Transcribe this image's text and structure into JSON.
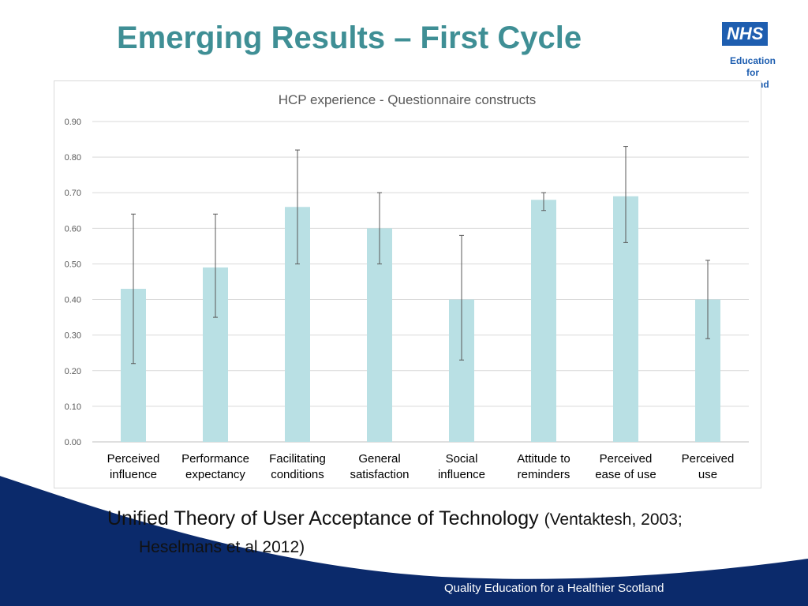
{
  "slide": {
    "title": "Emerging Results – First Cycle",
    "caption_main": "Unified Theory of User Acceptance of Technology",
    "caption_ref_1": "(Ventaktesh, 2003;",
    "caption_ref_2": "Heselmans et al 2012)",
    "footer": "Quality Education for a Healthier Scotland"
  },
  "logo": {
    "mark": "NHS",
    "line1": "Education",
    "line2": "for",
    "line3": "nd"
  },
  "colors": {
    "title": "#3f8f95",
    "bar": "#b9e0e4",
    "error_bar": "#595959",
    "footer_band": "#0b2a6b"
  },
  "chart_data": {
    "type": "bar",
    "title": "HCP experience - Questionnaire constructs",
    "categories": [
      [
        "Perceived",
        "influence"
      ],
      [
        "Performance",
        "expectancy"
      ],
      [
        "Facilitating",
        "conditions"
      ],
      [
        "General",
        "satisfaction"
      ],
      [
        "Social",
        "influence"
      ],
      [
        "Attitude to",
        "reminders"
      ],
      [
        "Perceived",
        "ease of use"
      ],
      [
        "Perceived",
        "use"
      ]
    ],
    "values": [
      0.43,
      0.49,
      0.66,
      0.6,
      0.4,
      0.68,
      0.69,
      0.4
    ],
    "error_low": [
      0.22,
      0.35,
      0.5,
      0.5,
      0.23,
      0.65,
      0.56,
      0.29
    ],
    "error_high": [
      0.64,
      0.64,
      0.82,
      0.7,
      0.58,
      0.7,
      0.83,
      0.51
    ],
    "yticks": [
      "0.00",
      "0.10",
      "0.20",
      "0.30",
      "0.40",
      "0.50",
      "0.60",
      "0.70",
      "0.80",
      "0.90"
    ],
    "ylim": [
      0,
      0.9
    ],
    "grid": true,
    "legend": "none"
  }
}
